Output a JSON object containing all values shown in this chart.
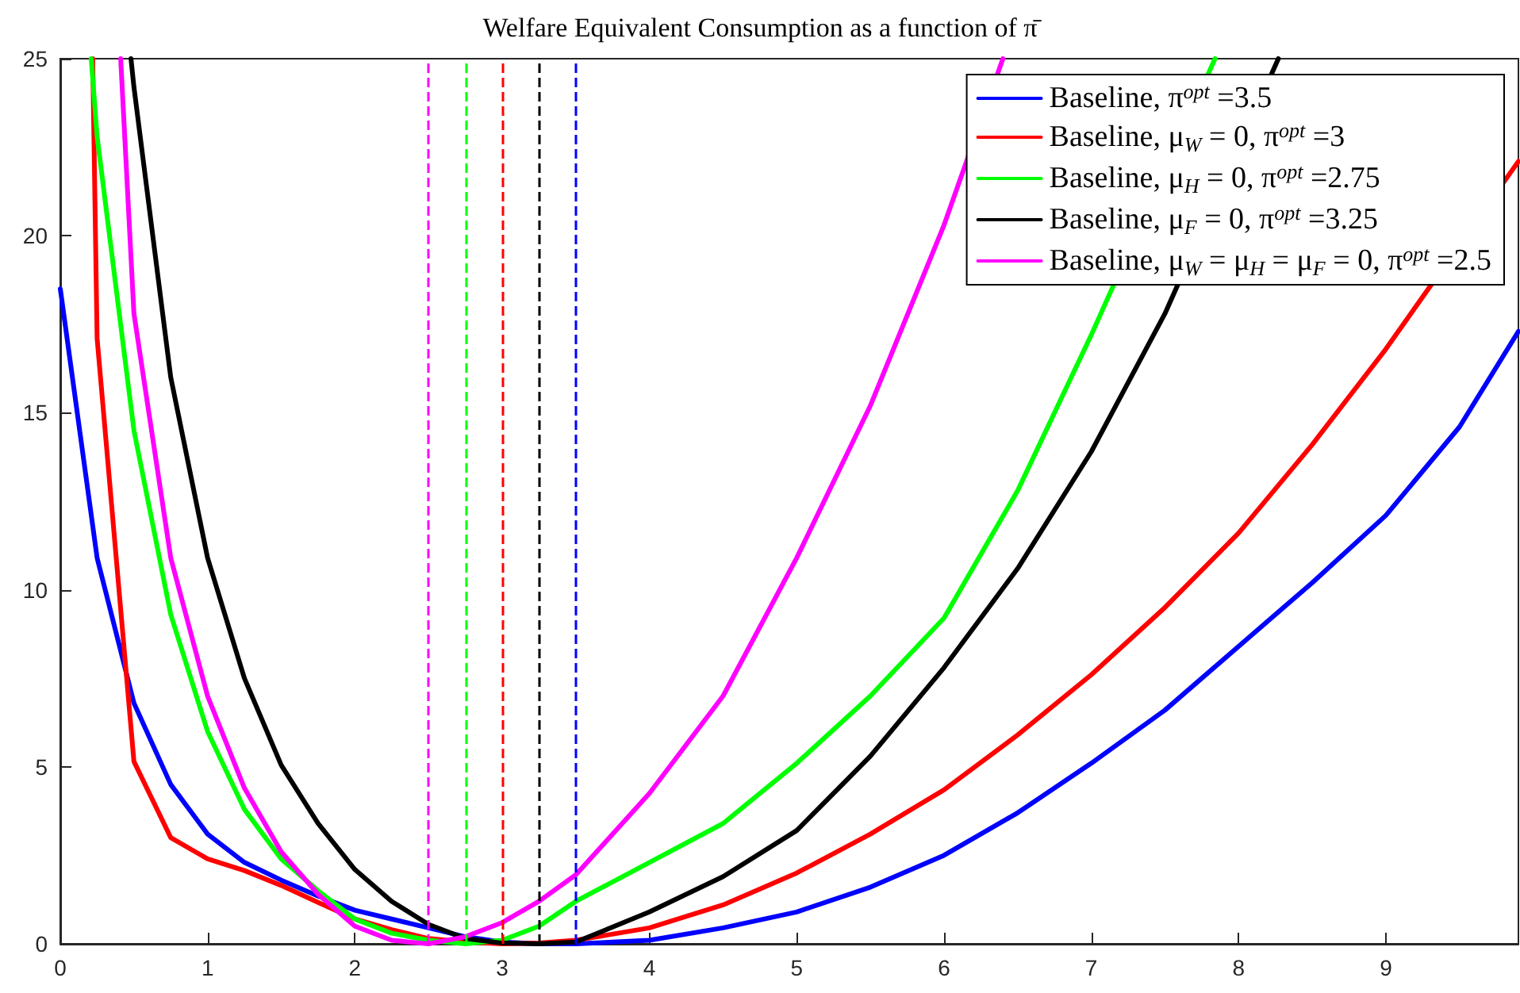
{
  "chart_data": {
    "type": "line",
    "title": "Welfare Equivalent Consumption as a function of π̄",
    "xlim": [
      0,
      9.9
    ],
    "xticks": [
      0,
      1,
      2,
      3,
      4,
      5,
      6,
      7,
      8,
      9
    ],
    "ylim": [
      0,
      25
    ],
    "yticks": [
      0,
      5,
      10,
      15,
      20,
      25
    ],
    "grid": false,
    "legend": "top right",
    "marker": "none",
    "line_style": "solid",
    "series": [
      {
        "name": "Baseline, π$^{opt}$ =3.5",
        "color": "#0000ff",
        "x": [
          0,
          0.25,
          0.5,
          0.75,
          1,
          1.25,
          1.5,
          1.75,
          2,
          2.25,
          2.5,
          2.75,
          3,
          3.25,
          3.5,
          4,
          4.5,
          5,
          5.5,
          6,
          6.5,
          7,
          7.5,
          8,
          8.5,
          9,
          9.5,
          9.9
        ],
        "values": [
          18.5,
          10.9,
          6.8,
          4.5,
          3.1,
          2.3,
          1.8,
          1.35,
          0.95,
          0.7,
          0.45,
          0.2,
          0.05,
          0,
          0,
          0.1,
          0.45,
          0.9,
          1.6,
          2.5,
          3.7,
          5.1,
          6.6,
          8.4,
          10.2,
          12.1,
          14.6,
          17.3
        ]
      },
      {
        "name": "Baseline, μ$_{W}$ = 0, π$^{opt}$ =3",
        "color": "#ff0000",
        "x": [
          0.22,
          0.25,
          0.5,
          0.75,
          1,
          1.25,
          1.5,
          1.75,
          2,
          2.25,
          2.5,
          2.75,
          3,
          3.25,
          3.5,
          4,
          4.5,
          5,
          5.5,
          6,
          6.5,
          7,
          7.5,
          8,
          8.5,
          9,
          9.5,
          9.9
        ],
        "values": [
          25,
          17.1,
          5.15,
          3.0,
          2.4,
          2.07,
          1.65,
          1.17,
          0.7,
          0.4,
          0.15,
          0.05,
          0,
          0.02,
          0.1,
          0.45,
          1.1,
          2.0,
          3.1,
          4.35,
          5.9,
          7.6,
          9.5,
          11.6,
          14.1,
          16.8,
          null,
          22.1
        ]
      },
      {
        "name": "Baseline, μ$_{H}$ = 0, π$^{opt}$ =2.75",
        "color": "#00ff00",
        "x": [
          0.21,
          0.25,
          0.5,
          0.75,
          1,
          1.25,
          1.5,
          1.75,
          2,
          2.25,
          2.5,
          2.75,
          3,
          3.25,
          3.5,
          4,
          4.5,
          5,
          5.5,
          6,
          6.5,
          7,
          7.5,
          7.84
        ],
        "values": [
          25,
          22.8,
          14.5,
          9.3,
          6.0,
          3.8,
          2.4,
          1.5,
          0.7,
          0.3,
          0.1,
          0,
          0.1,
          0.5,
          1.2,
          2.3,
          3.4,
          5.1,
          7.0,
          9.2,
          12.8,
          17.2,
          null,
          25
        ]
      },
      {
        "name": "Baseline, μ$_{F}$ = 0, π$^{opt}$ =3.25",
        "color": "#000000",
        "x": [
          0.48,
          0.5,
          0.75,
          1,
          1.25,
          1.5,
          1.75,
          2,
          2.25,
          2.5,
          2.75,
          3,
          3.25,
          3.5,
          4,
          4.5,
          5,
          5.5,
          6,
          6.5,
          7,
          7.5,
          8,
          8.27
        ],
        "values": [
          25,
          24.2,
          16.0,
          10.9,
          7.5,
          5.05,
          3.4,
          2.1,
          1.2,
          0.55,
          0.15,
          0.02,
          0,
          0.05,
          0.9,
          1.9,
          3.2,
          5.3,
          7.8,
          10.6,
          13.9,
          17.8,
          null,
          25
        ]
      },
      {
        "name": "Baseline, μ$_{W}$ = μ$_{H}$ = μ$_{F}$ = 0, π$^{opt}$ =2.5",
        "color": "#ff00ff",
        "x": [
          0.41,
          0.5,
          0.75,
          1,
          1.25,
          1.5,
          1.75,
          2,
          2.25,
          2.5,
          2.75,
          3,
          3.25,
          3.5,
          4,
          4.5,
          5,
          5.5,
          6,
          6.4
        ],
        "values": [
          25,
          17.8,
          10.9,
          7.0,
          4.4,
          2.6,
          1.4,
          0.5,
          0.1,
          0,
          0.2,
          0.6,
          1.2,
          1.95,
          4.25,
          7.0,
          10.9,
          15.2,
          20.3,
          25
        ]
      }
    ],
    "ref_lines": [
      {
        "axis": "x",
        "value": 2.5,
        "color": "#ff00ff",
        "line_style": "dashed"
      },
      {
        "axis": "x",
        "value": 2.75,
        "color": "#00ff00",
        "line_style": "dashed"
      },
      {
        "axis": "x",
        "value": 3,
        "color": "#ff0000",
        "line_style": "dashed"
      },
      {
        "axis": "x",
        "value": 3.25,
        "color": "#000000",
        "line_style": "dashed"
      },
      {
        "axis": "x",
        "value": 3.5,
        "color": "#0000ff",
        "line_style": "dashed"
      }
    ]
  }
}
